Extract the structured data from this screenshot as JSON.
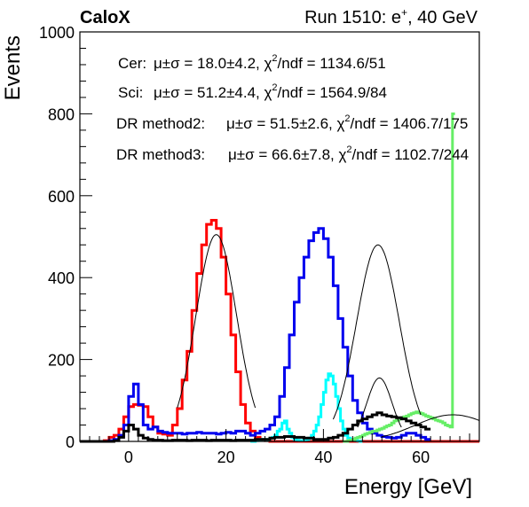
{
  "chart_data": {
    "type": "histogram",
    "header": {
      "left": "CaloX",
      "right_prefix": "Run 1510: e",
      "right_sup": "+",
      "right_suffix": ", 40 GeV"
    },
    "xlabel": "Energy [GeV]",
    "ylabel": "Events",
    "xlim": [
      -10,
      72
    ],
    "ylim": [
      0,
      1000
    ],
    "xticks": [
      0,
      20,
      40,
      60
    ],
    "yticks": [
      0,
      200,
      400,
      600,
      800,
      1000
    ],
    "grid": false,
    "legend_placement": "top-left",
    "stats": [
      {
        "label": "Cer:",
        "pre": "μ±σ = 18.0±4.2, χ",
        "post": "/ndf = 1134.6/51"
      },
      {
        "label": "Sci:",
        "pre": "μ±σ = 51.2±4.4, χ",
        "post": "/ndf = 1564.9/84"
      },
      {
        "label": "DR method2:",
        "pre": "μ±σ = 51.5±2.6, χ",
        "post": "/ndf = 1406.7/175"
      },
      {
        "label": "DR method3:",
        "pre": "μ±σ = 66.6±7.8, χ",
        "post": "/ndf = 1102.7/244"
      }
    ],
    "stats_sup": "2",
    "series": [
      {
        "color": "#ff0000",
        "bin_width": 1,
        "x_start": -10,
        "values": [
          0,
          0,
          0,
          0,
          0,
          2,
          10,
          15,
          30,
          60,
          85,
          90,
          88,
          85,
          60,
          35,
          20,
          18,
          15,
          40,
          80,
          150,
          220,
          320,
          410,
          480,
          530,
          540,
          520,
          450,
          360,
          260,
          170,
          90,
          45,
          25,
          10,
          5,
          2,
          0,
          0,
          0,
          0,
          0,
          0,
          0,
          0,
          0,
          0,
          0,
          0,
          0,
          0,
          0,
          0,
          0,
          0,
          0,
          0,
          0,
          0,
          0,
          0,
          0,
          0,
          0,
          0,
          0,
          0,
          0,
          0,
          0,
          0,
          0,
          0,
          0,
          0,
          0,
          0,
          0,
          0,
          0
        ],
        "fit": {
          "mu": 18.0,
          "sigma": 4.2,
          "amp": 505,
          "range": [
            10,
            26
          ]
        }
      },
      {
        "color": "#0000ee",
        "bin_width": 1,
        "x_start": -10,
        "values": [
          0,
          0,
          0,
          0,
          0,
          0,
          2,
          5,
          15,
          40,
          110,
          140,
          90,
          40,
          30,
          35,
          25,
          22,
          20,
          20,
          20,
          18,
          20,
          20,
          22,
          20,
          20,
          20,
          18,
          20,
          22,
          20,
          25,
          25,
          20,
          15,
          20,
          25,
          30,
          40,
          60,
          110,
          180,
          260,
          340,
          400,
          450,
          490,
          510,
          520,
          495,
          450,
          380,
          300,
          230,
          160,
          100,
          70,
          45,
          30,
          20,
          15,
          12,
          10,
          8,
          10,
          15,
          20,
          20,
          15,
          10,
          5
        ],
        "fit": {
          "mu": 51.2,
          "sigma": 4.4,
          "amp": 480,
          "range": [
            42,
            60
          ]
        }
      },
      {
        "color": "#00ffff",
        "bin_width": 0.5,
        "x_start": 25,
        "values": [
          0,
          0,
          2,
          3,
          5,
          5,
          4,
          5,
          8,
          10,
          15,
          25,
          30,
          45,
          50,
          30,
          20,
          10,
          5,
          3,
          2,
          2,
          3,
          5,
          8,
          15,
          25,
          40,
          60,
          90,
          120,
          150,
          165,
          160,
          140,
          110,
          80,
          50,
          30,
          15,
          8,
          5,
          3,
          2,
          1,
          0
        ],
        "fit": {
          "mu": 51.5,
          "sigma": 2.6,
          "amp": 155,
          "range": [
            47,
            56
          ]
        }
      },
      {
        "color": "#66ee66",
        "bin_width": 0.5,
        "x_start": 44,
        "values": [
          0,
          0,
          2,
          3,
          5,
          8,
          10,
          12,
          15,
          18,
          20,
          22,
          25,
          25,
          28,
          30,
          32,
          35,
          38,
          40,
          45,
          50,
          52,
          55,
          58,
          60,
          62,
          65,
          68,
          70,
          72,
          70,
          68,
          65,
          62,
          60,
          58,
          55,
          52,
          50,
          48,
          45,
          40,
          38,
          35,
          800
        ],
        "fit": {
          "mu": 66.6,
          "sigma": 7.8,
          "amp": 65,
          "range": [
            52,
            72
          ]
        }
      },
      {
        "color": "#000000",
        "bin_width": 1,
        "x_start": -10,
        "values": [
          0,
          0,
          0,
          0,
          0,
          0,
          0,
          2,
          10,
          25,
          40,
          30,
          15,
          8,
          5,
          3,
          3,
          2,
          2,
          3,
          3,
          3,
          2,
          3,
          3,
          3,
          2,
          3,
          3,
          3,
          3,
          2,
          3,
          3,
          3,
          3,
          5,
          5,
          5,
          8,
          10,
          10,
          12,
          12,
          10,
          10,
          8,
          8,
          5,
          5,
          5,
          8,
          10,
          15,
          20,
          30,
          40,
          50,
          55,
          60,
          65,
          70,
          65,
          62,
          60,
          58,
          55,
          50,
          45,
          40,
          35,
          30
        ]
      }
    ]
  }
}
